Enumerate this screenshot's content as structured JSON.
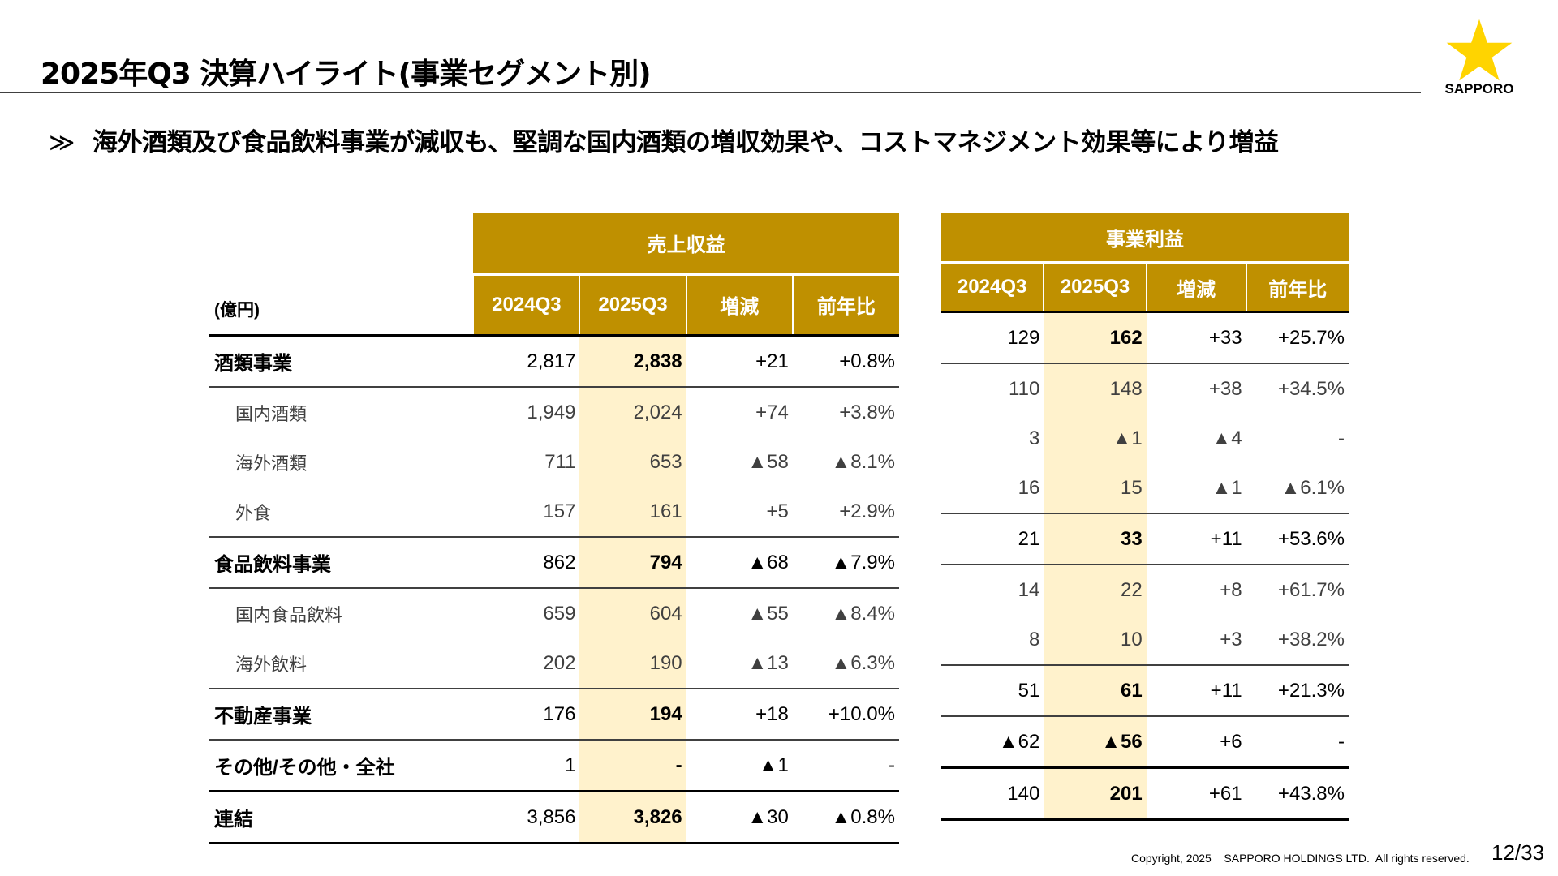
{
  "title": "2025年Q3 決算ハイライト(事業セグメント別)",
  "logo": {
    "text": "SAPPORO",
    "color": "#FFD400"
  },
  "subtitle": {
    "mark": "≫",
    "text": "海外酒類及び食品飲料事業が減収も、堅調な国内酒類の増収効果や、コストマネジメント効果等により増益"
  },
  "colors": {
    "header": "#BF9000",
    "highlight": "#FFF2CC"
  },
  "unit_label": "(億円)",
  "revenue": {
    "title": "売上収益",
    "columns": [
      "2024Q3",
      "2025Q3",
      "増減",
      "前年比"
    ]
  },
  "profit": {
    "title": "事業利益",
    "columns": [
      "2024Q3",
      "2025Q3",
      "増減",
      "前年比"
    ]
  },
  "rows": [
    {
      "label": "酒類事業",
      "type": "main",
      "revenue": [
        "2,817",
        "2,838",
        "+21",
        "+0.8%"
      ],
      "profit": [
        "129",
        "162",
        "+33",
        "+25.7%"
      ]
    },
    {
      "label": "国内酒類",
      "type": "sub",
      "revenue": [
        "1,949",
        "2,024",
        "+74",
        "+3.8%"
      ],
      "profit": [
        "110",
        "148",
        "+38",
        "+34.5%"
      ]
    },
    {
      "label": "海外酒類",
      "type": "sub",
      "revenue": [
        "711",
        "653",
        "▲58",
        "▲8.1%"
      ],
      "profit": [
        "3",
        "▲1",
        "▲4",
        "-"
      ]
    },
    {
      "label": "外食",
      "type": "sub",
      "revenue": [
        "157",
        "161",
        "+5",
        "+2.9%"
      ],
      "profit": [
        "16",
        "15",
        "▲1",
        "▲6.1%"
      ]
    },
    {
      "label": "食品飲料事業",
      "type": "main",
      "revenue": [
        "862",
        "794",
        "▲68",
        "▲7.9%"
      ],
      "profit": [
        "21",
        "33",
        "+11",
        "+53.6%"
      ]
    },
    {
      "label": "国内食品飲料",
      "type": "sub",
      "revenue": [
        "659",
        "604",
        "▲55",
        "▲8.4%"
      ],
      "profit": [
        "14",
        "22",
        "+8",
        "+61.7%"
      ]
    },
    {
      "label": "海外飲料",
      "type": "sub",
      "revenue": [
        "202",
        "190",
        "▲13",
        "▲6.3%"
      ],
      "profit": [
        "8",
        "10",
        "+3",
        "+38.2%"
      ]
    },
    {
      "label": "不動産事業",
      "type": "main",
      "revenue": [
        "176",
        "194",
        "+18",
        "+10.0%"
      ],
      "profit": [
        "51",
        "61",
        "+11",
        "+21.3%"
      ]
    },
    {
      "label": "その他/その他・全社",
      "type": "main",
      "revenue": [
        "1",
        "-",
        "▲1",
        "-"
      ],
      "profit": [
        "▲62",
        "▲56",
        "+6",
        "-"
      ]
    },
    {
      "label": "連結",
      "type": "main",
      "revenue": [
        "3,856",
        "3,826",
        "▲30",
        "▲0.8%"
      ],
      "profit": [
        "140",
        "201",
        "+61",
        "+43.8%"
      ]
    }
  ],
  "footer": {
    "copyright": "Copyright, 2025    SAPPORO HOLDINGS LTD.  All rights reserved.",
    "page": "12/33"
  }
}
